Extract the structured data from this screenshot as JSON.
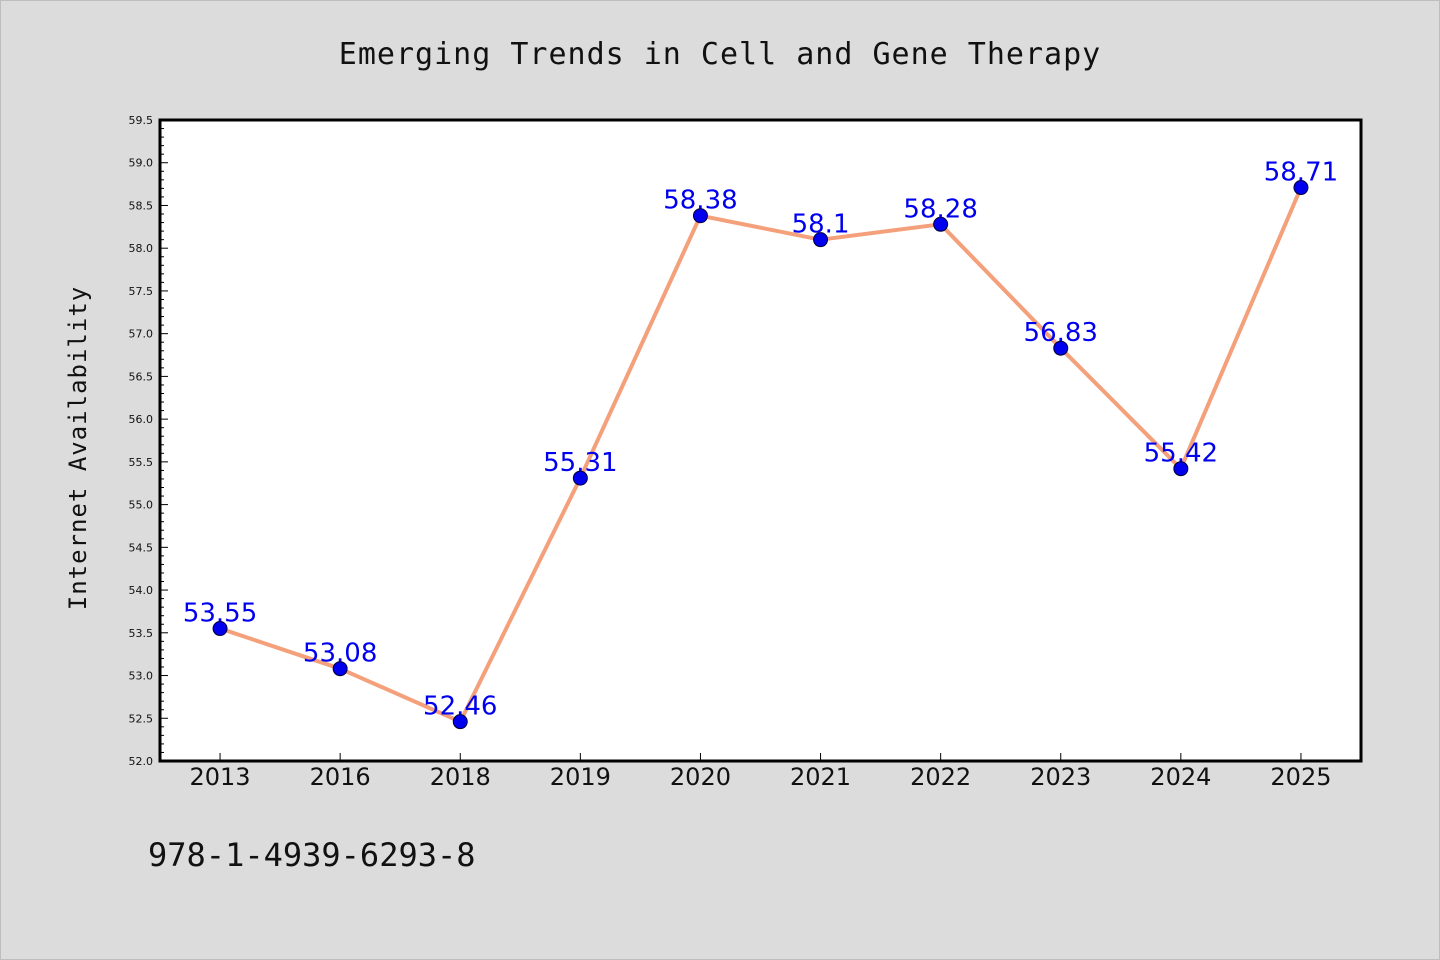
{
  "chart_data": {
    "type": "line",
    "title": "Emerging Trends in Cell and Gene Therapy",
    "xlabel": "",
    "ylabel": "Internet Availability",
    "categories": [
      "2013",
      "2016",
      "2018",
      "2019",
      "2020",
      "2021",
      "2022",
      "2023",
      "2024",
      "2025"
    ],
    "series": [
      {
        "values": [
          53.55,
          53.08,
          52.46,
          55.31,
          58.38,
          58.1,
          58.28,
          56.83,
          55.42,
          58.71
        ],
        "line_color": "#f4a07a",
        "marker_color": "#0000ee"
      }
    ],
    "data_labels": [
      "53.55",
      "53.08",
      "52.46",
      "55.31",
      "58.38",
      "58.1",
      "58.28",
      "56.83",
      "55.42",
      "58.71"
    ],
    "ylim": [
      52.0,
      59.5
    ],
    "yticks": [
      "52.0",
      "52.5",
      "53.0",
      "53.5",
      "54.0",
      "54.5",
      "55.0",
      "55.5",
      "56.0",
      "56.5",
      "57.0",
      "57.5",
      "58.0",
      "58.5",
      "59.0",
      "59.5"
    ],
    "grid": false,
    "label_color": "#0000ee"
  },
  "footer": {
    "isbn": "978-1-4939-6293-8"
  },
  "colors": {
    "background": "#dcdcdc",
    "plot_background": "#ffffff",
    "axis": "#000000"
  }
}
